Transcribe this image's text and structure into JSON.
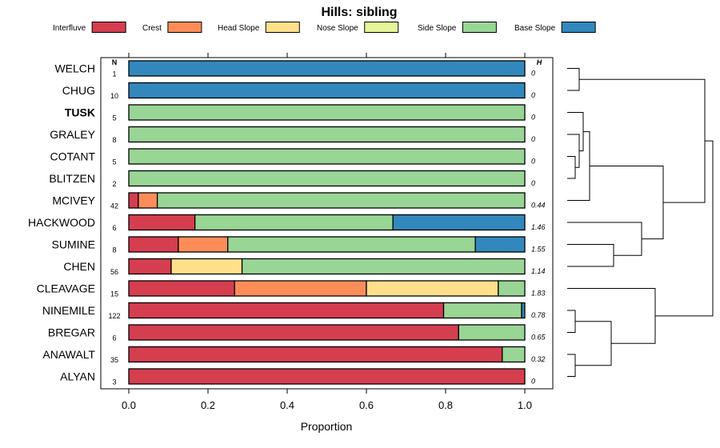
{
  "chart_data": {
    "type": "bar",
    "subtype": "stacked-horizontal-proportion-with-dendrogram",
    "title": "Hills: sibling",
    "xlabel": "Proportion",
    "xlim": [
      0,
      1
    ],
    "xticks": [
      "0.0",
      "0.2",
      "0.4",
      "0.6",
      "0.8",
      "1.0"
    ],
    "n_header": "N",
    "h_header": "H",
    "legend": [
      {
        "name": "Interfluve",
        "color": "#d53e4f"
      },
      {
        "name": "Crest",
        "color": "#fc8d59"
      },
      {
        "name": "Head Slope",
        "color": "#fee08b"
      },
      {
        "name": "Nose Slope",
        "color": "#e6f598"
      },
      {
        "name": "Side Slope",
        "color": "#99d594"
      },
      {
        "name": "Base Slope",
        "color": "#3288bd"
      }
    ],
    "highlight": "TUSK",
    "rows": [
      {
        "name": "WELCH",
        "n": "1",
        "h": "0",
        "values": [
          0,
          0,
          0,
          0,
          0,
          1
        ]
      },
      {
        "name": "CHUG",
        "n": "10",
        "h": "0",
        "values": [
          0,
          0,
          0,
          0,
          0,
          1
        ]
      },
      {
        "name": "TUSK",
        "n": "5",
        "h": "0",
        "values": [
          0,
          0,
          0,
          0,
          1,
          0
        ]
      },
      {
        "name": "GRALEY",
        "n": "8",
        "h": "0",
        "values": [
          0,
          0,
          0,
          0,
          1,
          0
        ]
      },
      {
        "name": "COTANT",
        "n": "5",
        "h": "0",
        "values": [
          0,
          0,
          0,
          0,
          1,
          0
        ]
      },
      {
        "name": "BLITZEN",
        "n": "2",
        "h": "0",
        "values": [
          0,
          0,
          0,
          0,
          1,
          0
        ]
      },
      {
        "name": "MCIVEY",
        "n": "42",
        "h": "0.44",
        "values": [
          0.024,
          0.048,
          0,
          0,
          0.928,
          0
        ]
      },
      {
        "name": "HACKWOOD",
        "n": "6",
        "h": "1.46",
        "values": [
          0.167,
          0,
          0,
          0,
          0.5,
          0.333
        ]
      },
      {
        "name": "SUMINE",
        "n": "8",
        "h": "1.55",
        "values": [
          0.125,
          0.125,
          0,
          0,
          0.625,
          0.125
        ]
      },
      {
        "name": "CHEN",
        "n": "56",
        "h": "1.14",
        "values": [
          0.107,
          0,
          0.179,
          0,
          0.714,
          0
        ]
      },
      {
        "name": "CLEAVAGE",
        "n": "15",
        "h": "1.83",
        "values": [
          0.267,
          0.333,
          0.333,
          0,
          0.067,
          0
        ]
      },
      {
        "name": "NINEMILE",
        "n": "122",
        "h": "0.78",
        "values": [
          0.795,
          0,
          0,
          0,
          0.197,
          0.008
        ]
      },
      {
        "name": "BREGAR",
        "n": "6",
        "h": "0.65",
        "values": [
          0.833,
          0,
          0,
          0,
          0.167,
          0
        ]
      },
      {
        "name": "ANAWALT",
        "n": "35",
        "h": "0.32",
        "values": [
          0.943,
          0,
          0,
          0,
          0.057,
          0
        ]
      },
      {
        "name": "ALYAN",
        "n": "3",
        "h": "0",
        "values": [
          1,
          0,
          0,
          0,
          0,
          0
        ]
      }
    ],
    "dendrogram": {
      "merges": [
        {
          "a": "WELCH",
          "b": "CHUG",
          "height": 0.15
        },
        {
          "a": "COTANT",
          "b": "BLITZEN",
          "height": 0.1
        },
        {
          "a": "GRALEY",
          "b": "m1",
          "height": 0.15
        },
        {
          "a": "TUSK",
          "b": "m2",
          "height": 0.2
        },
        {
          "a": "m3",
          "b": "MCIVEY",
          "height": 0.28
        },
        {
          "a": "CHEN",
          "b": "SUMINE",
          "height": 0.58
        },
        {
          "a": "HACKWOOD",
          "b": "m5",
          "height": 0.93
        },
        {
          "a": "m4",
          "b": "m6",
          "height": 1.2
        },
        {
          "a": "m0",
          "b": "m7",
          "height": 1.72
        },
        {
          "a": "NINEMILE",
          "b": "BREGAR",
          "height": 0.1
        },
        {
          "a": "ANAWALT",
          "b": "ALYAN",
          "height": 0.1
        },
        {
          "a": "m9",
          "b": "m10",
          "height": 0.55
        },
        {
          "a": "CLEAVAGE",
          "b": "m11",
          "height": 1.1
        },
        {
          "a": "m8",
          "b": "m12",
          "height": 1.82
        }
      ]
    }
  }
}
